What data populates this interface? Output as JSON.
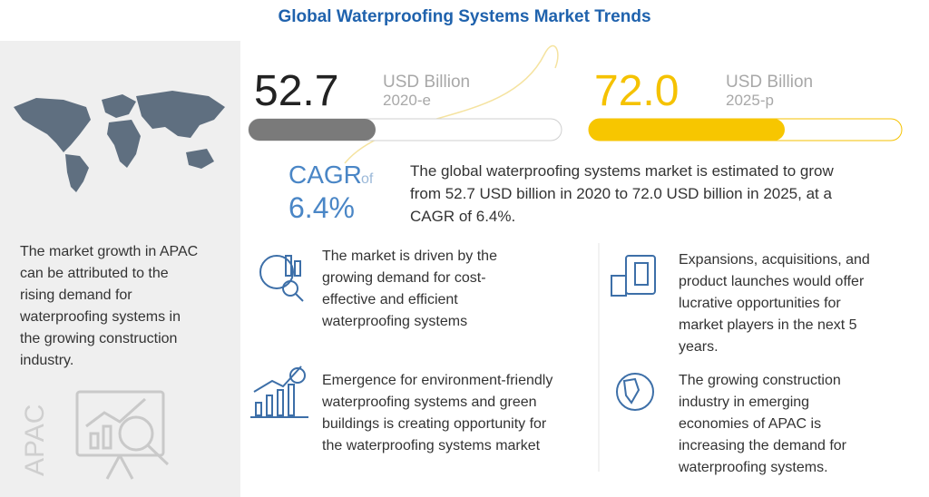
{
  "title": "Global Waterproofing Systems Market Trends",
  "left_panel": {
    "text_lines": [
      "The market growth in APAC",
      "can be attributed to the",
      "rising demand for",
      "waterproofing systems in",
      "the growing construction",
      "industry."
    ],
    "region": "APAC"
  },
  "stats": [
    {
      "value": "52.7",
      "unit": "USD Billion",
      "year": "2020-e"
    },
    {
      "value": "72.0",
      "unit": "USD Billion",
      "year": "2025-p"
    }
  ],
  "cagr": {
    "label": "CAGR",
    "of": "of",
    "value": "6.4%"
  },
  "description_lines": [
    "The global waterproofing systems market is estimated to grow",
    "from 52.7 USD billion in 2020 to 72.0 USD billion in 2025, at a",
    "CAGR of 6.4%."
  ],
  "items": [
    {
      "lines": [
        "The market is driven by the",
        "growing demand for cost-",
        "effective and efficient",
        "waterproofing systems"
      ]
    },
    {
      "lines": [
        "Expansions, acquisitions, and",
        "product launches would offer",
        "lucrative opportunities for",
        "market players in the next 5",
        "years."
      ]
    },
    {
      "lines": [
        "Emergence for environment-friendly",
        "waterproofing systems and green",
        "buildings is creating opportunity for",
        "the waterproofing systems market"
      ]
    },
    {
      "lines": [
        "The growing construction",
        "industry in emerging",
        "economies of APAC is",
        "increasing the demand for",
        "waterproofing systems."
      ]
    }
  ]
}
